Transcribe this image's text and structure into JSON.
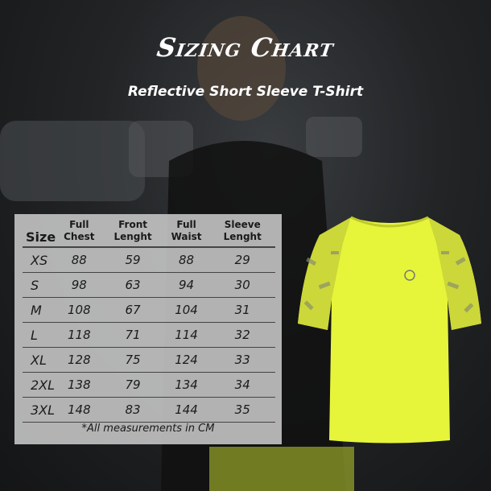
{
  "header": {
    "title": "Sizing Chart",
    "subtitle": "Reflective Short Sleeve T-Shirt"
  },
  "table": {
    "columns": [
      "Size",
      "Full Chest",
      "Front Lenght",
      "Full Waist",
      "Sleeve Lenght"
    ],
    "rows": [
      [
        "XS",
        "88",
        "59",
        "88",
        "29"
      ],
      [
        "S",
        "98",
        "63",
        "94",
        "30"
      ],
      [
        "M",
        "108",
        "67",
        "104",
        "31"
      ],
      [
        "L",
        "118",
        "71",
        "114",
        "32"
      ],
      [
        "XL",
        "128",
        "75",
        "124",
        "33"
      ],
      [
        "2XL",
        "138",
        "79",
        "134",
        "34"
      ],
      [
        "3XL",
        "148",
        "83",
        "144",
        "35"
      ]
    ],
    "note": "*All measurements in CM"
  },
  "colors": {
    "shirt": "#e6f53a",
    "panel": "#c8c8c8",
    "background": "#1e2022"
  }
}
